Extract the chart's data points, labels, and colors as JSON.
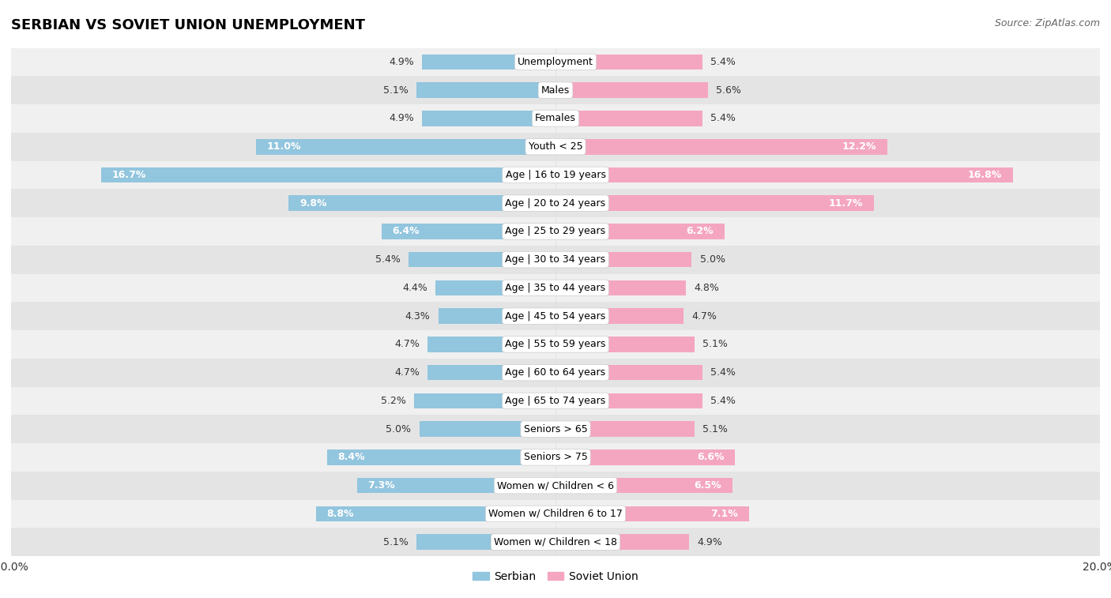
{
  "title": "SERBIAN VS SOVIET UNION UNEMPLOYMENT",
  "source": "Source: ZipAtlas.com",
  "categories": [
    "Unemployment",
    "Males",
    "Females",
    "Youth < 25",
    "Age | 16 to 19 years",
    "Age | 20 to 24 years",
    "Age | 25 to 29 years",
    "Age | 30 to 34 years",
    "Age | 35 to 44 years",
    "Age | 45 to 54 years",
    "Age | 55 to 59 years",
    "Age | 60 to 64 years",
    "Age | 65 to 74 years",
    "Seniors > 65",
    "Seniors > 75",
    "Women w/ Children < 6",
    "Women w/ Children 6 to 17",
    "Women w/ Children < 18"
  ],
  "serbian": [
    4.9,
    5.1,
    4.9,
    11.0,
    16.7,
    9.8,
    6.4,
    5.4,
    4.4,
    4.3,
    4.7,
    4.7,
    5.2,
    5.0,
    8.4,
    7.3,
    8.8,
    5.1
  ],
  "soviet": [
    5.4,
    5.6,
    5.4,
    12.2,
    16.8,
    11.7,
    6.2,
    5.0,
    4.8,
    4.7,
    5.1,
    5.4,
    5.4,
    5.1,
    6.6,
    6.5,
    7.1,
    4.9
  ],
  "serbian_color": "#92c5de",
  "soviet_color": "#f4a6c0",
  "bg_row_odd": "#f0f0f0",
  "bg_row_even": "#e4e4e4",
  "max_val": 20.0,
  "label_fontsize": 9.0,
  "title_fontsize": 13,
  "source_fontsize": 9,
  "legend_fontsize": 10,
  "bar_height": 0.55,
  "value_inside_threshold": 6.0
}
